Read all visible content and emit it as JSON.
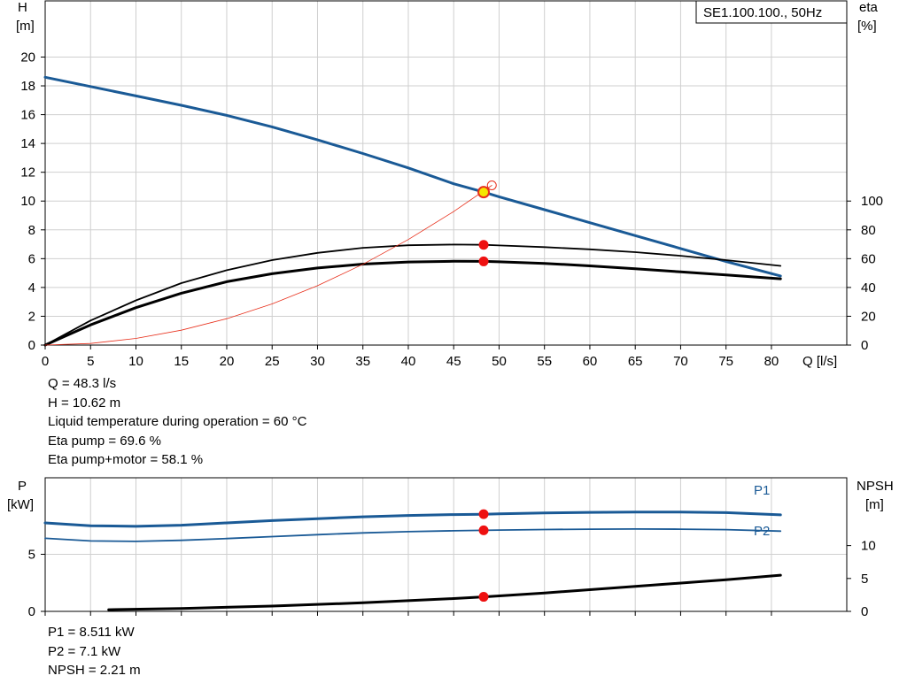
{
  "chart_data": [
    {
      "type": "line",
      "legend_box": "SE1.100.100., 50Hz",
      "y_left_label": [
        "H",
        "[m]"
      ],
      "y_right_label": [
        "eta",
        "[%]"
      ],
      "x_label": "Q [l/s]",
      "x_ticks": [
        0,
        5,
        10,
        15,
        20,
        25,
        30,
        35,
        40,
        45,
        50,
        55,
        60,
        65,
        70,
        75,
        80
      ],
      "y_left_ticks": [
        0,
        2,
        4,
        6,
        8,
        10,
        12,
        14,
        16,
        18,
        20
      ],
      "y_right_ticks": [
        0,
        20,
        40,
        60,
        80,
        100
      ],
      "xlim": [
        0,
        88.3
      ],
      "ylim_left": [
        0,
        23.9
      ],
      "ylim_right": [
        0,
        239
      ],
      "grid": true,
      "series": [
        {
          "id": "head-curve",
          "axis": "left",
          "color": "#1a5a96",
          "x": [
            0,
            5,
            10,
            15,
            20,
            25,
            30,
            35,
            40,
            45,
            48.3,
            50,
            55,
            60,
            65,
            70,
            75,
            81
          ],
          "y": [
            18.6,
            17.95,
            17.3,
            16.65,
            15.95,
            15.15,
            14.25,
            13.3,
            12.3,
            11.2,
            10.62,
            10.3,
            9.4,
            8.5,
            7.6,
            6.7,
            5.8,
            4.8
          ]
        },
        {
          "id": "eta-pump-curve",
          "axis": "right",
          "color": "#000000",
          "x": [
            0,
            5,
            10,
            15,
            20,
            25,
            30,
            35,
            40,
            45,
            48.3,
            50,
            55,
            60,
            65,
            70,
            75,
            81
          ],
          "y": [
            0,
            17,
            31,
            43,
            52,
            59,
            64,
            67.5,
            69.3,
            69.8,
            69.6,
            69.2,
            68,
            66.5,
            64.5,
            62,
            59,
            55
          ]
        },
        {
          "id": "eta-pump-motor-curve",
          "axis": "right",
          "color": "#000000",
          "x": [
            0,
            5,
            10,
            15,
            20,
            25,
            30,
            35,
            40,
            45,
            48.3,
            50,
            55,
            60,
            65,
            70,
            75,
            81
          ],
          "y": [
            0,
            14,
            26,
            36,
            44,
            49.5,
            53.5,
            56.2,
            57.7,
            58.2,
            58.1,
            57.8,
            56.7,
            55,
            53,
            50.8,
            48.7,
            46
          ]
        },
        {
          "id": "system-curve",
          "axis": "left",
          "color": "#e8301c",
          "x": [
            0,
            5,
            10,
            15,
            20,
            25,
            30,
            35,
            40,
            45,
            49.2
          ],
          "y": [
            0,
            0.11,
            0.46,
            1.03,
            1.83,
            2.86,
            4.12,
            5.61,
            7.33,
            9.27,
            11.09
          ]
        }
      ],
      "operating_points": [
        {
          "id": "duty-point",
          "axis": "left",
          "x": 48.3,
          "y": 10.62
        },
        {
          "id": "eta-pump-point",
          "axis": "right",
          "x": 48.3,
          "y": 69.6
        },
        {
          "id": "eta-pump-motor-point",
          "axis": "right",
          "x": 48.3,
          "y": 58.1
        }
      ]
    },
    {
      "type": "line",
      "y_left_label": [
        "P",
        "[kW]"
      ],
      "y_right_label": [
        "NPSH",
        "[m]"
      ],
      "y_left_ticks": [
        0,
        5
      ],
      "y_right_ticks": [
        0,
        5,
        10
      ],
      "ylim_left": [
        0,
        11.7
      ],
      "ylim_right": [
        0,
        20.3
      ],
      "grid": true,
      "series": [
        {
          "id": "p1-curve",
          "name": "P1",
          "axis": "left",
          "color": "#1a5a96",
          "x": [
            0,
            5,
            10,
            15,
            20,
            25,
            30,
            35,
            40,
            45,
            48.3,
            50,
            55,
            60,
            65,
            70,
            75,
            81
          ],
          "y": [
            7.75,
            7.5,
            7.45,
            7.55,
            7.75,
            7.95,
            8.12,
            8.28,
            8.4,
            8.48,
            8.511,
            8.55,
            8.62,
            8.67,
            8.7,
            8.7,
            8.65,
            8.45
          ]
        },
        {
          "id": "p2-curve",
          "name": "P2",
          "axis": "left",
          "color": "#1a5a96",
          "x": [
            0,
            5,
            10,
            15,
            20,
            25,
            30,
            35,
            40,
            45,
            48.3,
            50,
            55,
            60,
            65,
            70,
            75,
            81
          ],
          "y": [
            6.4,
            6.17,
            6.13,
            6.22,
            6.38,
            6.55,
            6.72,
            6.87,
            6.98,
            7.06,
            7.1,
            7.12,
            7.17,
            7.2,
            7.21,
            7.2,
            7.16,
            7.03
          ]
        },
        {
          "id": "npsh-curve",
          "axis": "right",
          "color": "#000000",
          "x": [
            7,
            15,
            25,
            35,
            45,
            48.3,
            55,
            65,
            75,
            81
          ],
          "y": [
            0.25,
            0.45,
            0.8,
            1.3,
            1.95,
            2.21,
            2.8,
            3.8,
            4.8,
            5.5
          ]
        }
      ],
      "operating_points": [
        {
          "id": "p1-point",
          "axis": "left",
          "x": 48.3,
          "y": 8.511
        },
        {
          "id": "p2-point",
          "axis": "left",
          "x": 48.3,
          "y": 7.1
        },
        {
          "id": "npsh-point",
          "axis": "right",
          "x": 48.3,
          "y": 2.21
        }
      ]
    }
  ],
  "info_top": [
    "Q = 48.3 l/s",
    "H = 10.62 m",
    "Liquid temperature during operation = 60 °C",
    "Eta pump = 69.6 %",
    "Eta pump+motor = 58.1 %"
  ],
  "info_bottom": [
    "P1 = 8.511 kW",
    "P2 = 7.1 kW",
    "NPSH = 2.21 m"
  ]
}
